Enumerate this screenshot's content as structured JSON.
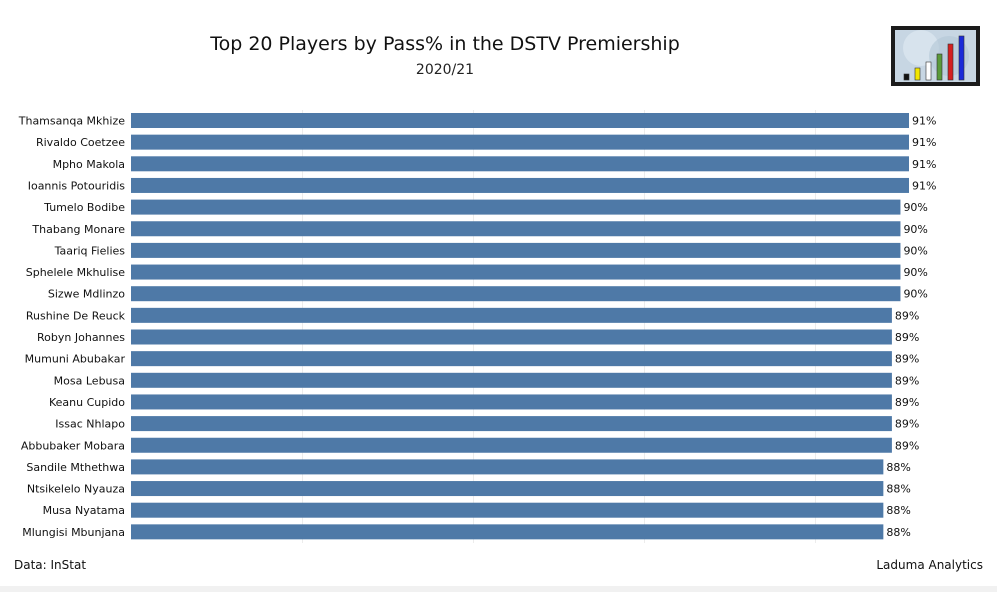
{
  "chart_data": {
    "type": "bar",
    "orientation": "horizontal",
    "title": "Top 20 Players by Pass% in the DSTV Premiership",
    "subtitle": "2020/21",
    "categories": [
      "Thamsanqa Mkhize",
      "Rivaldo Coetzee",
      "Mpho Makola",
      "Ioannis Potouridis",
      "Tumelo Bodibe",
      "Thabang Monare",
      "Taariq Fielies",
      "Sphelele Mkhulise",
      "Sizwe Mdlinzo",
      "Rushine De Reuck",
      "Robyn Johannes",
      "Mumuni Abubakar",
      "Mosa Lebusa",
      "Keanu Cupido",
      "Issac Nhlapo",
      "Abbubaker Mobara",
      "Sandile Mthethwa",
      "Ntsikelelo Nyauza",
      "Musa Nyatama",
      "Mlungisi Mbunjana"
    ],
    "values": [
      91,
      91,
      91,
      91,
      90,
      90,
      90,
      90,
      90,
      89,
      89,
      89,
      89,
      89,
      89,
      89,
      88,
      88,
      88,
      88
    ],
    "labels": [
      "91%",
      "91%",
      "91%",
      "91%",
      "90%",
      "90%",
      "90%",
      "90%",
      "90%",
      "89%",
      "89%",
      "89%",
      "89%",
      "89%",
      "89%",
      "89%",
      "88%",
      "88%",
      "88%",
      "88%"
    ],
    "xlim": [
      0,
      91
    ],
    "bar_color": "#4e79a7",
    "gridlines": true
  },
  "footer": {
    "source": "Data: InStat",
    "credit": "Laduma Analytics"
  },
  "logo": {
    "icon": "bar-chart-logo-icon",
    "bar_colors": [
      "#111111",
      "#f2e600",
      "#ffffff",
      "#5a9a3a",
      "#d42020",
      "#1a2ad8"
    ]
  }
}
